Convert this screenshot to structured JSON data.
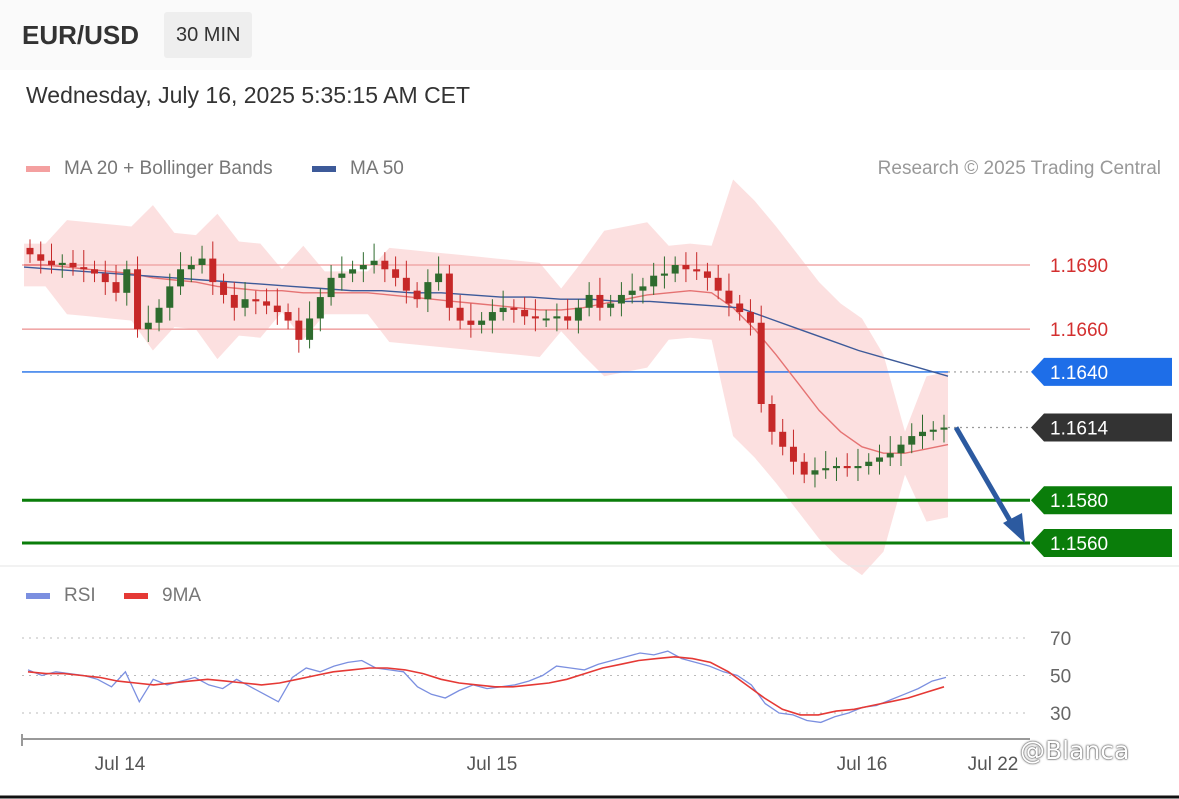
{
  "header": {
    "pair": "EUR/USD",
    "timeframe": "30 MIN"
  },
  "timestamp": "Wednesday, July 16, 2025 5:35:15 AM CET",
  "legend": {
    "ma20_label": "MA 20 + Bollinger Bands",
    "ma50_label": "MA 50",
    "credit": "Research © 2025 Trading Central"
  },
  "rsi_legend": {
    "rsi_label": "RSI",
    "ma9_label": "9MA"
  },
  "watermark": "@Blanca",
  "colors": {
    "ma20": "#e57373",
    "band": "#fbd5d5",
    "ma50": "#3d5a99",
    "resistance": "#f0a8a8",
    "resistance_text": "#d32f2f",
    "pivot": "#1e6ee8",
    "support": "#0a7d0a",
    "last": "#333333",
    "candle_up": "#2e6b2e",
    "candle_down": "#c62828",
    "rsi": "#7b8fe0",
    "rsi_ma": "#e53935",
    "arrow": "#2c5aa0"
  },
  "chart_data": [
    {
      "type": "line",
      "title": "EUR/USD 30 MIN",
      "x_ticks": [
        "Jul 14",
        "Jul 15",
        "Jul 16",
        "Jul 22"
      ],
      "ylim": [
        1.1548,
        1.1712
      ],
      "levels": [
        {
          "value": 1.169,
          "label": "1.1690",
          "kind": "resistance"
        },
        {
          "value": 1.166,
          "label": "1.1660",
          "kind": "resistance"
        },
        {
          "value": 1.164,
          "label": "1.1640",
          "kind": "pivot"
        },
        {
          "value": 1.1614,
          "label": "1.1614",
          "kind": "last"
        },
        {
          "value": 1.158,
          "label": "1.1580",
          "kind": "support"
        },
        {
          "value": 1.156,
          "label": "1.1560",
          "kind": "support"
        }
      ],
      "price_close": [
        1.1695,
        1.1692,
        1.169,
        1.1691,
        1.1689,
        1.1688,
        1.1686,
        1.1682,
        1.1677,
        1.1688,
        1.166,
        1.1663,
        1.167,
        1.168,
        1.1688,
        1.169,
        1.1693,
        1.1682,
        1.1676,
        1.167,
        1.1674,
        1.1673,
        1.1671,
        1.1668,
        1.1664,
        1.1655,
        1.1665,
        1.1675,
        1.1684,
        1.1686,
        1.1688,
        1.169,
        1.1692,
        1.1688,
        1.1684,
        1.1678,
        1.1674,
        1.1682,
        1.1686,
        1.167,
        1.1664,
        1.1662,
        1.1664,
        1.1668,
        1.167,
        1.1669,
        1.1666,
        1.1665,
        1.1665,
        1.1666,
        1.1664,
        1.167,
        1.1676,
        1.167,
        1.1672,
        1.1676,
        1.1678,
        1.168,
        1.1685,
        1.1686,
        1.169,
        1.1688,
        1.1687,
        1.1684,
        1.1678,
        1.1672,
        1.1668,
        1.1663,
        1.1625,
        1.1612,
        1.1605,
        1.1598,
        1.1592,
        1.1594,
        1.1595,
        1.1596,
        1.1595,
        1.1596,
        1.1598,
        1.16,
        1.1602,
        1.1606,
        1.161,
        1.1612,
        1.1613,
        1.1614
      ],
      "ma20": [
        1.169,
        1.169,
        1.1689,
        1.1688,
        1.1687,
        1.1686,
        1.1684,
        1.1683,
        1.1682,
        1.168,
        1.1679,
        1.1678,
        1.1678,
        1.1677,
        1.1677,
        1.1677,
        1.1677,
        1.1676,
        1.1675,
        1.1674,
        1.1673,
        1.1672,
        1.1671,
        1.167,
        1.1669,
        1.1669,
        1.167,
        1.1672,
        1.1674,
        1.1676,
        1.1677,
        1.1678,
        1.1677,
        1.167,
        1.166,
        1.1648,
        1.1635,
        1.1622,
        1.1612,
        1.1605,
        1.1602,
        1.1602,
        1.1604,
        1.1606
      ],
      "ma50": [
        1.1689,
        1.1688,
        1.1687,
        1.1686,
        1.1685,
        1.1684,
        1.1683,
        1.1682,
        1.1681,
        1.168,
        1.1679,
        1.1678,
        1.1678,
        1.1677,
        1.1677,
        1.1676,
        1.1675,
        1.1675,
        1.1674,
        1.1674,
        1.1673,
        1.1673,
        1.1672,
        1.1671,
        1.167,
        1.1665,
        1.166,
        1.1655,
        1.165,
        1.1646,
        1.1642,
        1.1638
      ],
      "forecast": {
        "from": 1.1614,
        "to": 1.156
      }
    },
    {
      "type": "line",
      "title": "RSI",
      "yticks": [
        30,
        50,
        70
      ],
      "ylim": [
        20,
        80
      ],
      "series": [
        {
          "name": "RSI",
          "values": [
            53,
            50,
            52,
            51,
            50,
            48,
            44,
            52,
            36,
            48,
            45,
            47,
            49,
            45,
            43,
            48,
            44,
            40,
            36,
            49,
            54,
            52,
            55,
            57,
            58,
            54,
            53,
            52,
            44,
            40,
            38,
            42,
            45,
            43,
            44,
            45,
            47,
            50,
            55,
            54,
            53,
            56,
            58,
            60,
            62,
            61,
            63,
            59,
            57,
            55,
            52,
            50,
            45,
            35,
            30,
            29,
            26,
            25,
            28,
            30,
            33,
            34,
            37,
            40,
            43,
            47,
            49
          ]
        },
        {
          "name": "9MA",
          "values": [
            52,
            51,
            51,
            50,
            49,
            47,
            46,
            45,
            46,
            47,
            48,
            47,
            46,
            45,
            46,
            48,
            50,
            52,
            53,
            54,
            54,
            53,
            51,
            48,
            46,
            45,
            44,
            44,
            45,
            46,
            48,
            51,
            54,
            56,
            58,
            59,
            60,
            59,
            57,
            52,
            45,
            38,
            32,
            29,
            29,
            31,
            32,
            34,
            36,
            38,
            41,
            44
          ]
        }
      ]
    }
  ]
}
